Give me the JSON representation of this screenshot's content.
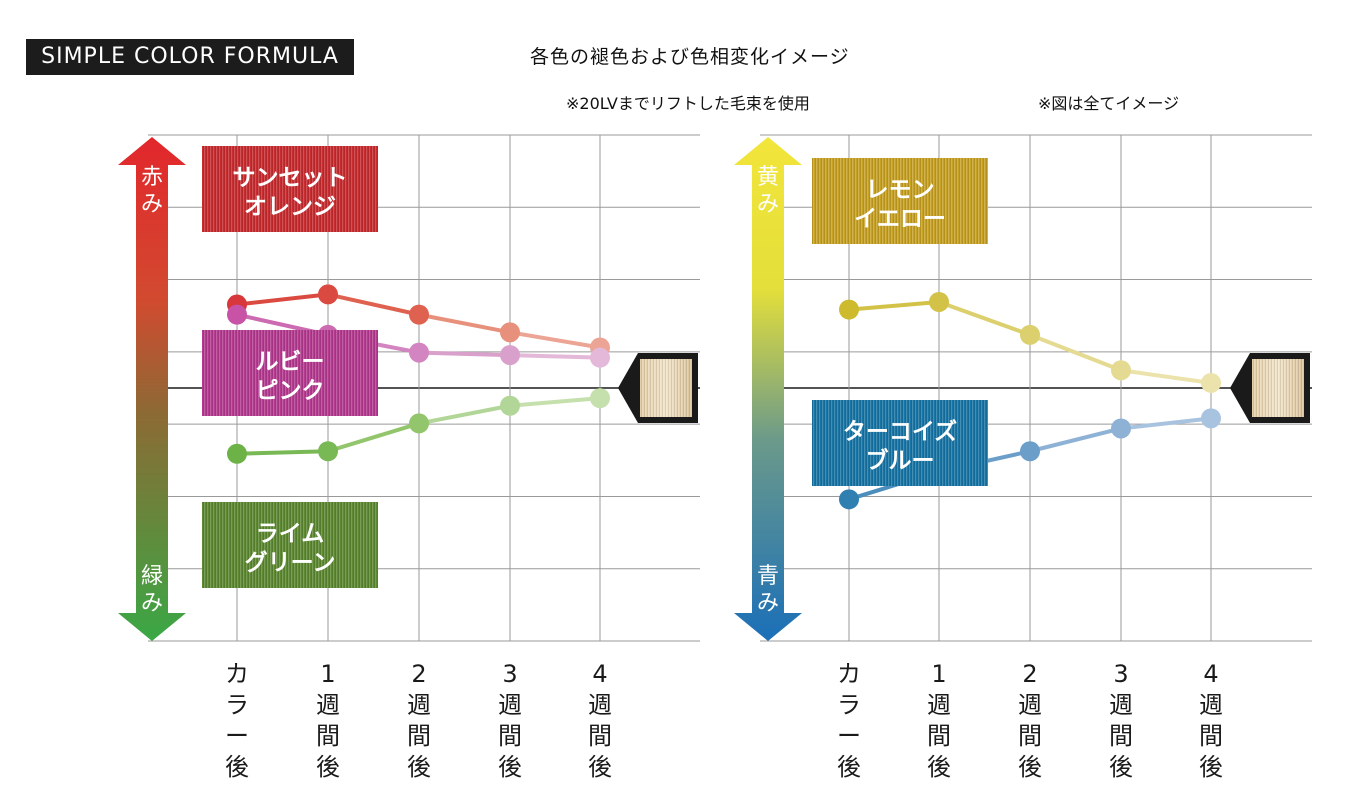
{
  "header": {
    "badge": "SIMPLE COLOR FORMULA",
    "title": "各色の褪色および色相変化イメージ",
    "note_left": "※20LVまでリフトした毛束を使用",
    "note_right": "※図は全てイメージ"
  },
  "chart_data": [
    {
      "type": "line",
      "x": [
        "カラー後",
        "1週間後",
        "2週間後",
        "3週間後",
        "4週間後"
      ],
      "x_tick_lines": [
        [
          "カ",
          "ラ",
          "ー",
          "後"
        ],
        [
          "1",
          "週",
          "間",
          "後"
        ],
        [
          "2",
          "週",
          "間",
          "後"
        ],
        [
          "3",
          "週",
          "間",
          "後"
        ],
        [
          "4",
          "週",
          "間",
          "後"
        ]
      ],
      "ylim": [
        -1,
        1
      ],
      "y_axis": {
        "top_label": "赤み",
        "bottom_label": "緑み",
        "top_color": "#e23236",
        "bottom_color": "#3fa944"
      },
      "grid": true,
      "series": [
        {
          "name": "サンセットオレンジ",
          "label_lines": [
            "サンセット",
            "オレンジ"
          ],
          "values": [
            0.33,
            0.37,
            0.29,
            0.22,
            0.16
          ],
          "colors": [
            "#d8373c",
            "#db4a40",
            "#df6250",
            "#e7917d",
            "#eca494"
          ],
          "swatch": [
            "#d6383b",
            "#a8171e"
          ]
        },
        {
          "name": "ルビーピンク",
          "label_lines": [
            "ルビー",
            "ピンク"
          ],
          "values": [
            0.29,
            0.21,
            0.14,
            0.13,
            0.12
          ],
          "colors": [
            "#c752a6",
            "#cc6ab2",
            "#d285c0",
            "#daa0cc",
            "#e3b8d9"
          ],
          "swatch": [
            "#c84aa4",
            "#8e1f6c"
          ]
        },
        {
          "name": "ライムグリーン",
          "label_lines": [
            "ライム",
            "グリーン"
          ],
          "values": [
            -0.26,
            -0.25,
            -0.14,
            -0.07,
            -0.04
          ],
          "colors": [
            "#6cb246",
            "#79b955",
            "#92c56c",
            "#b2d697",
            "#c5e0ad"
          ],
          "swatch": [
            "#6e9a3c",
            "#3f6a20"
          ]
        }
      ]
    },
    {
      "type": "line",
      "x": [
        "カラー後",
        "1週間後",
        "2週間後",
        "3週間後",
        "4週間後"
      ],
      "x_tick_lines": [
        [
          "カ",
          "ラ",
          "ー",
          "後"
        ],
        [
          "1",
          "週",
          "間",
          "後"
        ],
        [
          "2",
          "週",
          "間",
          "後"
        ],
        [
          "3",
          "週",
          "間",
          "後"
        ],
        [
          "4",
          "週",
          "間",
          "後"
        ]
      ],
      "ylim": [
        -1,
        1
      ],
      "y_axis": {
        "top_label": "黄み",
        "bottom_label": "青み",
        "top_color": "#f0e531",
        "bottom_color": "#1d6fb8"
      },
      "grid": true,
      "series": [
        {
          "name": "レモンイエロー",
          "label_lines": [
            "レモン",
            "イエロー"
          ],
          "values": [
            0.31,
            0.34,
            0.21,
            0.07,
            0.02
          ],
          "colors": [
            "#cdbb2d",
            "#d2c248",
            "#dccf6d",
            "#e4da92",
            "#ebe3ab"
          ],
          "swatch": [
            "#d8b32e",
            "#a88210"
          ]
        },
        {
          "name": "ターコイズブルー",
          "label_lines": [
            "ターコイズ",
            "ブルー"
          ],
          "values": [
            -0.44,
            -0.33,
            -0.25,
            -0.16,
            -0.12
          ],
          "colors": [
            "#2f80b0",
            "#4b8dbc",
            "#6b9fca",
            "#8eb2d6",
            "#a8c3e0"
          ],
          "swatch": [
            "#1f85b5",
            "#0f5a86"
          ]
        }
      ]
    }
  ]
}
